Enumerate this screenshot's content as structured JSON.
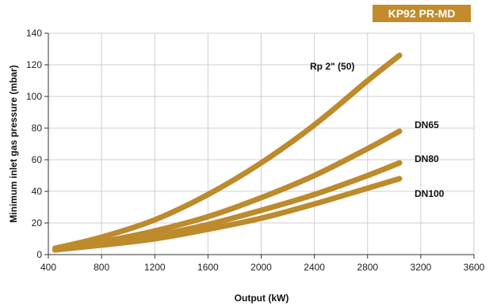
{
  "badge": {
    "text": "KP92 PR-MD",
    "color": "#c38b2a"
  },
  "chart_data": {
    "type": "line",
    "title": "",
    "xlabel": "Output (kW)",
    "ylabel": "Minimum inlet gas pressure (mbar)",
    "xlim": [
      400,
      3600
    ],
    "ylim": [
      0,
      140
    ],
    "xticks": [
      400,
      800,
      1200,
      1600,
      2000,
      2400,
      2800,
      3200,
      3600
    ],
    "yticks": [
      0,
      20,
      40,
      60,
      80,
      100,
      120,
      140
    ],
    "grid": true,
    "line_color": "#bd8a2c",
    "series": [
      {
        "name": "Rp 2\" (50)",
        "x": [
          450,
          800,
          1200,
          1600,
          2000,
          2400,
          2800,
          3040
        ],
        "y": [
          4,
          11,
          22,
          38,
          58,
          82,
          110,
          126
        ]
      },
      {
        "name": "DN65",
        "x": [
          450,
          800,
          1200,
          1600,
          2000,
          2400,
          2800,
          3040
        ],
        "y": [
          3,
          8,
          15,
          24,
          36,
          50,
          67,
          78
        ]
      },
      {
        "name": "DN80",
        "x": [
          450,
          800,
          1200,
          1600,
          2000,
          2400,
          2800,
          3040
        ],
        "y": [
          3,
          7,
          12,
          19,
          28,
          38,
          50,
          58
        ]
      },
      {
        "name": "DN100",
        "x": [
          450,
          800,
          1200,
          1600,
          2000,
          2400,
          2800,
          3040
        ],
        "y": [
          3,
          6,
          10,
          16,
          23,
          32,
          42,
          48
        ]
      }
    ]
  }
}
